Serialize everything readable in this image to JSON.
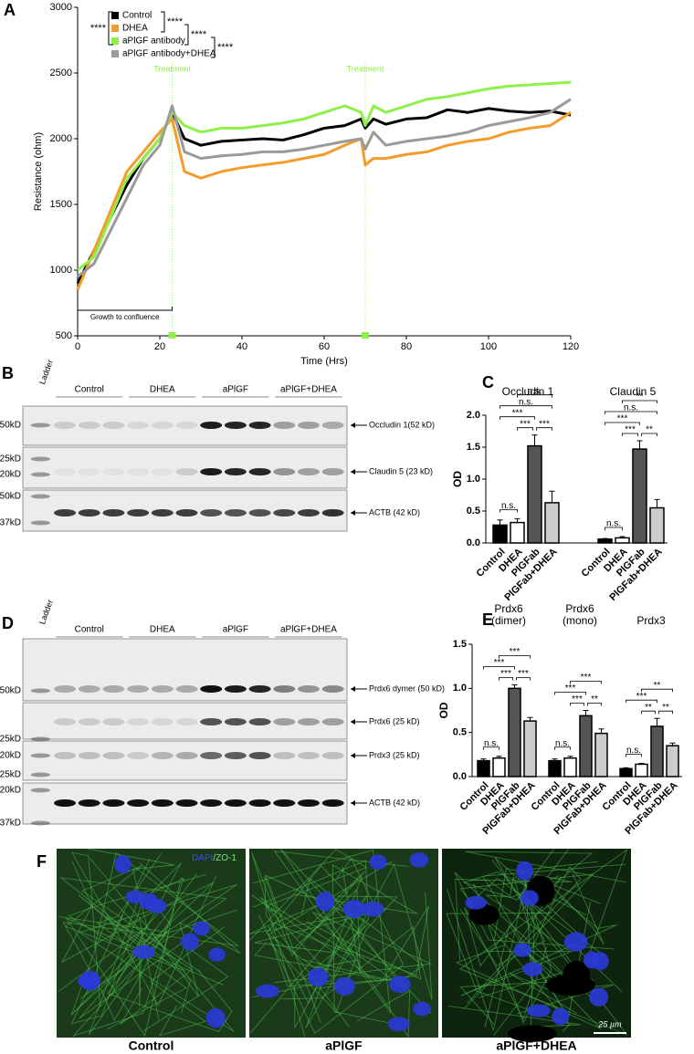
{
  "panel_labels": [
    "A",
    "B",
    "C",
    "D",
    "E",
    "F"
  ],
  "chart_data": [
    {
      "type": "line",
      "ylabel": "Resistance (ohm)",
      "xlabel": "Time (Hrs)",
      "xlim": [
        0,
        120
      ],
      "xticks": [
        0,
        20,
        40,
        60,
        80,
        100,
        120
      ],
      "ylim": [
        500,
        3000
      ],
      "yticks": [
        500,
        1000,
        1500,
        2000,
        2500,
        3000
      ],
      "x": [
        0,
        4,
        8,
        12,
        16,
        20,
        23,
        26,
        30,
        35,
        40,
        45,
        50,
        55,
        60,
        65,
        69,
        70,
        72,
        75,
        80,
        85,
        90,
        95,
        100,
        105,
        110,
        115,
        120
      ],
      "series": [
        {
          "name": "Control",
          "color": "#000000",
          "values": [
            900,
            1150,
            1400,
            1650,
            1850,
            2000,
            2200,
            2000,
            1950,
            1980,
            1990,
            2000,
            1990,
            2030,
            2080,
            2100,
            2150,
            2080,
            2150,
            2110,
            2150,
            2160,
            2220,
            2200,
            2230,
            2210,
            2200,
            2210,
            2180
          ]
        },
        {
          "name": "DHEA",
          "color": "#f39b2b",
          "values": [
            850,
            1150,
            1450,
            1750,
            1900,
            2050,
            2150,
            1750,
            1700,
            1750,
            1780,
            1800,
            1820,
            1850,
            1880,
            1950,
            2000,
            1800,
            1850,
            1850,
            1880,
            1900,
            1950,
            1980,
            2000,
            2050,
            2080,
            2100,
            2200
          ]
        },
        {
          "name": "aPlGF antibody",
          "color": "#8ff04a",
          "values": [
            1000,
            1100,
            1400,
            1700,
            1850,
            2000,
            2200,
            2100,
            2050,
            2080,
            2080,
            2100,
            2120,
            2150,
            2200,
            2250,
            2200,
            2100,
            2250,
            2200,
            2250,
            2300,
            2320,
            2350,
            2380,
            2400,
            2410,
            2420,
            2430
          ]
        },
        {
          "name": "aPlGF antibody+DHEA",
          "color": "#9a9a9a",
          "values": [
            950,
            1050,
            1300,
            1550,
            1800,
            1950,
            2250,
            1900,
            1850,
            1870,
            1880,
            1900,
            1900,
            1920,
            1950,
            1980,
            2000,
            1920,
            2050,
            1950,
            1980,
            2000,
            2020,
            2050,
            2100,
            2130,
            2160,
            2200,
            2300
          ]
        }
      ],
      "significance": [
        "****",
        "****",
        "****",
        "****"
      ],
      "treatment_label": "Treatment",
      "treatment_times": [
        23,
        70
      ],
      "growth_label": "Growth to confluence",
      "growth_span": [
        0,
        23
      ]
    },
    {
      "type": "bar",
      "ylabel": "OD",
      "categories": [
        "Control",
        "DHEA",
        "PlGFab",
        "PlGFab+DHEA"
      ],
      "colors": [
        "#000000",
        "#ffffff",
        "#555555",
        "#cccccc"
      ],
      "ylim": [
        0,
        2
      ],
      "yticks": [
        {
          "value": 0,
          "label": "0.0"
        },
        0.5,
        {
          "value": 1,
          "label": "1.0"
        },
        1.5,
        {
          "value": 2,
          "label": "2.0"
        }
      ],
      "groups": [
        {
          "title_lines": [
            "Occludin 1"
          ],
          "values": [
            0.28,
            0.32,
            1.52,
            0.63
          ],
          "errors": [
            0.08,
            0.06,
            0.17,
            0.18
          ],
          "brackets": [
            "n.s.",
            "n.s.",
            "***",
            "***",
            "***",
            "n.s."
          ]
        },
        {
          "title_lines": [
            "Claudin 5"
          ],
          "values": [
            0.06,
            0.08,
            1.47,
            0.55
          ],
          "errors": [
            0.01,
            0.02,
            0.13,
            0.13
          ],
          "brackets": [
            "**",
            "n.s.",
            "***",
            "***",
            "**",
            "n.s."
          ]
        }
      ]
    },
    {
      "type": "bar",
      "ylabel": "OD",
      "categories": [
        "Control",
        "DHEA",
        "PlGFab",
        "PlGFab+DHEA"
      ],
      "colors": [
        "#000000",
        "#ffffff",
        "#555555",
        "#cccccc"
      ],
      "ylim": [
        0,
        1.5
      ],
      "yticks": [
        {
          "value": 0,
          "label": "0.0"
        },
        0.5,
        {
          "value": 1,
          "label": "1.0"
        },
        1.5
      ],
      "groups": [
        {
          "title_lines": [
            "Prdx6",
            "(dimer)"
          ],
          "values": [
            0.18,
            0.21,
            1.0,
            0.63
          ],
          "errors": [
            0.02,
            0.02,
            0.04,
            0.04
          ],
          "brackets": [
            "***",
            "***",
            "***",
            "***",
            "n.s."
          ]
        },
        {
          "title_lines": [
            "Prdx6",
            "(mono)"
          ],
          "values": [
            0.18,
            0.21,
            0.69,
            0.49
          ],
          "errors": [
            0.02,
            0.02,
            0.06,
            0.05
          ],
          "brackets": [
            "***",
            "***",
            "***",
            "**",
            "n.s."
          ]
        },
        {
          "title_lines": [
            "Prdx3"
          ],
          "values": [
            0.09,
            0.14,
            0.57,
            0.35
          ],
          "errors": [
            0.01,
            0.01,
            0.09,
            0.03
          ],
          "brackets": [
            "**",
            "***",
            "**",
            "**",
            "n.s."
          ]
        }
      ]
    }
  ],
  "blot_B": {
    "ladder": "Ladder",
    "groups": [
      "Control",
      "DHEA",
      "aPlGF",
      "aPlGF+DHEA"
    ],
    "markers": [
      "50kD",
      "25kD",
      "20kD",
      "50kD",
      "37kD"
    ],
    "proteins": [
      "Occludin 1(52 kD)",
      "Claudin 5 (23 kD)",
      "ACTB (42 kD)"
    ]
  },
  "blot_D": {
    "ladder": "Ladder",
    "groups": [
      "Control",
      "DHEA",
      "aPlGF",
      "aPlGF+DHEA"
    ],
    "markers": [
      "50kD",
      "25kD",
      "20kD",
      "25kD",
      "20kD",
      "37kD"
    ],
    "proteins": [
      "Prdx6 dymer (50 kD)",
      "Prdx6 (25 kD)",
      "Prdx3 (25 kD)",
      "ACTB (42 kD)"
    ]
  },
  "micrographs": {
    "stain_dapi": "DAPI",
    "stain_zo1": "/ZO-1",
    "scale": "25 µm",
    "captions": [
      "Control",
      "aPlGF",
      "aPlGF+DHEA"
    ]
  }
}
